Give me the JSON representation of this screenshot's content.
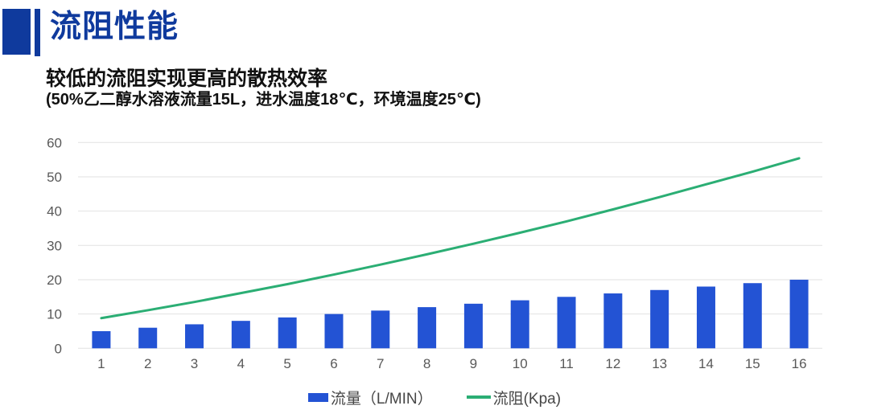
{
  "header": {
    "title": "流阻性能"
  },
  "subtitle": {
    "line1": "较低的流阻实现更高的散热效率",
    "line2": "(50%乙二醇水溶液流量15L，进水温度18℃，环境温度25℃)"
  },
  "colors": {
    "accent_navy": "#0f3a9d",
    "bar_blue": "#2353d4",
    "line_green": "#2bae74",
    "grid_line": "#e2e2e2",
    "axis_label": "#595959",
    "legend_text": "#464646"
  },
  "chart_data": {
    "type": "bar",
    "subtype": "bar+line combo",
    "categories": [
      1,
      2,
      3,
      4,
      5,
      6,
      7,
      8,
      9,
      10,
      11,
      12,
      13,
      14,
      15,
      16
    ],
    "series": [
      {
        "name": "流量（L/MIN）",
        "type": "bar",
        "color": "#2353d4",
        "values": [
          5,
          6,
          7,
          8,
          9,
          10,
          11,
          12,
          13,
          14,
          15,
          16,
          17,
          18,
          19,
          20
        ]
      },
      {
        "name": "流阻(Kpa)",
        "type": "line",
        "color": "#2bae74",
        "values": [
          8.8,
          11.1,
          13.5,
          16.1,
          18.7,
          21.5,
          24.4,
          27.4,
          30.5,
          33.7,
          37.0,
          40.5,
          44.1,
          47.8,
          51.5,
          55.4
        ]
      }
    ],
    "title": "",
    "xlabel": "",
    "ylabel": "",
    "ylim": [
      0,
      60
    ],
    "yticks": [
      0,
      10,
      20,
      30,
      40,
      50,
      60
    ],
    "grid": true,
    "legend_position": "bottom"
  }
}
